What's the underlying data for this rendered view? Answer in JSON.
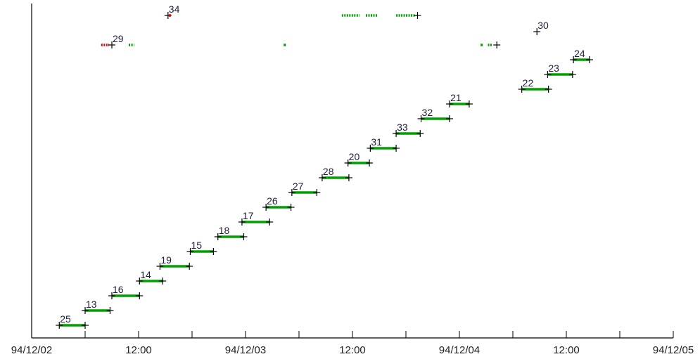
{
  "chart_data": {
    "type": "timeline",
    "x_axis": {
      "range": [
        "94/12/02 00:00",
        "94/12/05 00:00"
      ],
      "ticks": [
        {
          "t": 0,
          "label": "94/12/02"
        },
        {
          "t": 6,
          "label": ""
        },
        {
          "t": 12,
          "label": "12:00"
        },
        {
          "t": 18,
          "label": ""
        },
        {
          "t": 24,
          "label": "94/12/03"
        },
        {
          "t": 30,
          "label": ""
        },
        {
          "t": 36,
          "label": "12:00"
        },
        {
          "t": 42,
          "label": ""
        },
        {
          "t": 48,
          "label": "94/12/04"
        },
        {
          "t": 54,
          "label": ""
        },
        {
          "t": 60,
          "label": "12:00"
        },
        {
          "t": 66,
          "label": ""
        },
        {
          "t": 72,
          "label": "94/12/05"
        }
      ]
    },
    "y_axis": {
      "range": [
        0,
        21
      ],
      "ticks": false
    },
    "colors": {
      "segment": "#00a000",
      "marker": "#000000",
      "sparse_red": "#e00000",
      "label": "#1e1e3c"
    },
    "segments": [
      {
        "label": "25",
        "row": 0,
        "start": 3.1,
        "end": 6.0
      },
      {
        "label": "13",
        "row": 1,
        "start": 6.0,
        "end": 8.8
      },
      {
        "label": "16",
        "row": 2,
        "start": 9.0,
        "end": 12.1
      },
      {
        "label": "14",
        "row": 3,
        "start": 12.1,
        "end": 14.7
      },
      {
        "label": "19",
        "row": 4,
        "start": 14.4,
        "end": 17.7
      },
      {
        "label": "15",
        "row": 5,
        "start": 17.8,
        "end": 20.4
      },
      {
        "label": "18",
        "row": 6,
        "start": 20.9,
        "end": 23.8
      },
      {
        "label": "17",
        "row": 7,
        "start": 23.6,
        "end": 26.7
      },
      {
        "label": "26",
        "row": 8,
        "start": 26.3,
        "end": 29.1
      },
      {
        "label": "27",
        "row": 9,
        "start": 29.2,
        "end": 32.0
      },
      {
        "label": "28",
        "row": 10,
        "start": 32.6,
        "end": 35.6
      },
      {
        "label": "20",
        "row": 11,
        "start": 35.5,
        "end": 37.9
      },
      {
        "label": "31",
        "row": 12,
        "start": 38.0,
        "end": 40.9
      },
      {
        "label": "33",
        "row": 13,
        "start": 40.9,
        "end": 43.6
      },
      {
        "label": "32",
        "row": 14,
        "start": 43.7,
        "end": 46.9
      },
      {
        "label": "21",
        "row": 15,
        "start": 46.9,
        "end": 49.1
      },
      {
        "label": "22",
        "row": 16,
        "start": 55.0,
        "end": 58.0
      },
      {
        "label": "23",
        "row": 17,
        "start": 57.9,
        "end": 60.7
      },
      {
        "label": "24",
        "row": 18,
        "start": 60.8,
        "end": 62.6
      }
    ],
    "sparse_tracks": [
      {
        "label": "29",
        "row": 19,
        "marks": [
          {
            "t": 7.8,
            "color": "red",
            "kind": "dots",
            "end": 8.7
          },
          {
            "t": 9.0,
            "color": "black",
            "kind": "cross"
          },
          {
            "t": 10.9,
            "color": "green",
            "kind": "dots",
            "end": 11.5
          },
          {
            "t": 28.4,
            "color": "green",
            "kind": "dot"
          },
          {
            "t": 50.5,
            "color": "green",
            "kind": "dot"
          },
          {
            "t": 51.2,
            "color": "green",
            "kind": "dots",
            "end": 51.7
          },
          {
            "t": 52.2,
            "color": "black",
            "kind": "cross"
          }
        ]
      },
      {
        "label": "30",
        "row": 19.9,
        "marks": [
          {
            "t": 56.7,
            "color": "black",
            "kind": "cross"
          }
        ]
      },
      {
        "label": "34",
        "row": 21,
        "marks": [
          {
            "t": 15.3,
            "color": "black",
            "kind": "cross"
          },
          {
            "t": 15.5,
            "color": "red",
            "kind": "dot"
          },
          {
            "t": 34.8,
            "color": "green",
            "kind": "dots",
            "end": 36.8
          },
          {
            "t": 37.5,
            "color": "green",
            "kind": "dots",
            "end": 38.8
          },
          {
            "t": 40.9,
            "color": "green",
            "kind": "dots",
            "end": 43.0
          },
          {
            "t": 43.3,
            "color": "black",
            "kind": "cross"
          }
        ]
      }
    ]
  }
}
